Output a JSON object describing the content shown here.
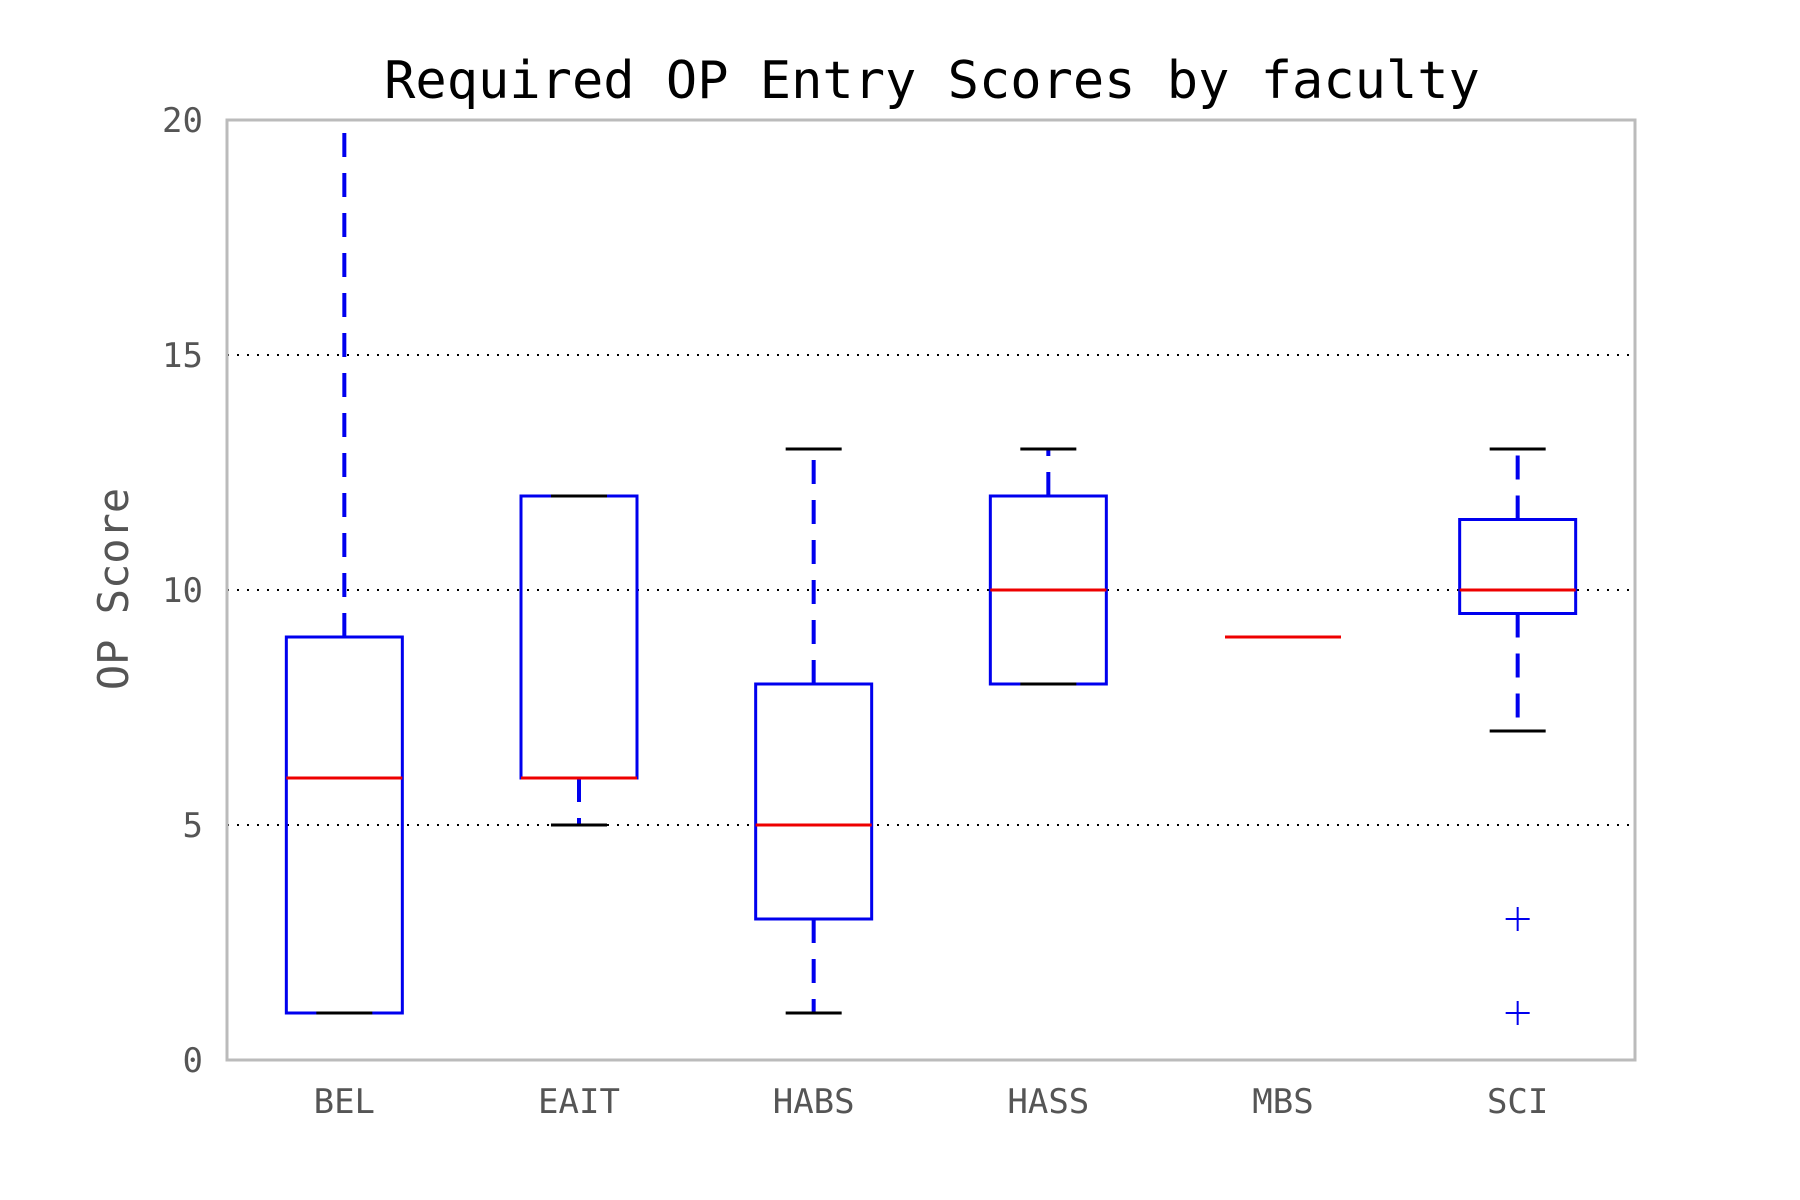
{
  "chart_data": {
    "type": "box",
    "title": "Required OP Entry Scores by faculty",
    "xlabel": "",
    "ylabel": "OP Score",
    "ylim": [
      0,
      20
    ],
    "yticks": [
      0,
      5,
      10,
      15,
      20
    ],
    "grid": "y dotted",
    "categories": [
      "BEL",
      "EAIT",
      "HABS",
      "HASS",
      "MBS",
      "SCI"
    ],
    "boxes": [
      {
        "category": "BEL",
        "whisker_low": 1,
        "q1": 1,
        "median": 6,
        "q3": 9,
        "whisker_high": 20,
        "outliers": []
      },
      {
        "category": "EAIT",
        "whisker_low": 5,
        "q1": 6,
        "median": 6,
        "q3": 12,
        "whisker_high": 12,
        "outliers": []
      },
      {
        "category": "HABS",
        "whisker_low": 1,
        "q1": 3,
        "median": 5,
        "q3": 8,
        "whisker_high": 13,
        "outliers": []
      },
      {
        "category": "HASS",
        "whisker_low": 8,
        "q1": 8,
        "median": 10,
        "q3": 12,
        "whisker_high": 13,
        "outliers": []
      },
      {
        "category": "MBS",
        "whisker_low": 9,
        "q1": 9,
        "median": 9,
        "q3": 9,
        "whisker_high": 9,
        "outliers": []
      },
      {
        "category": "SCI",
        "whisker_low": 7,
        "q1": 9.5,
        "median": 10,
        "q3": 11.5,
        "whisker_high": 13,
        "outliers": [
          3,
          1
        ]
      }
    ],
    "colors": {
      "box": "#0000ee",
      "median": "#ee0000",
      "cap": "#000000",
      "outlier": "#0000ee",
      "frame": "#bbbbbb",
      "grid": "#000000",
      "tick_text": "#555555"
    }
  }
}
